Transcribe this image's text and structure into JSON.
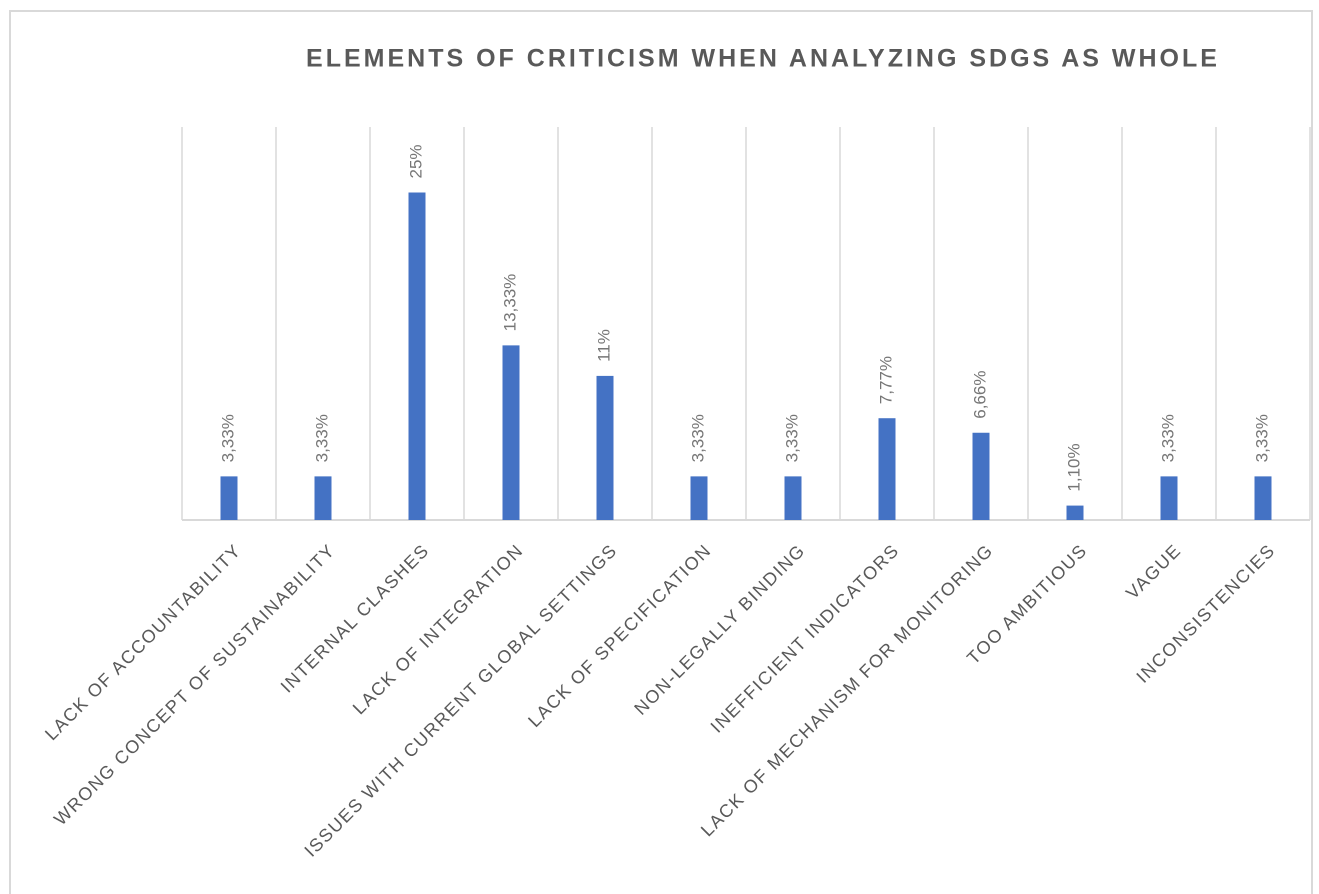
{
  "chart_data": {
    "type": "bar",
    "title": "ELEMENTS OF CRITICISM WHEN ANALYZING SDGS AS WHOLE",
    "categories": [
      "LACK OF ACCOUNTABILITY",
      "WRONG CONCEPT OF SUSTAINABILITY",
      "INTERNAL CLASHES",
      "LACK OF INTEGRATION",
      "ISSUES WITH CURRENT GLOBAL SETTINGS",
      "LACK OF SPECIFICATION",
      "NON-LEGALLY BINDING",
      "INEFFICIENT INDICATORS",
      "LACK OF MECHANISM FOR MONITORING",
      "TOO AMBITIOUS",
      "VAGUE",
      "INCONSISTENCIES"
    ],
    "values": [
      3.33,
      3.33,
      25,
      13.33,
      11,
      3.33,
      3.33,
      7.77,
      6.66,
      1.1,
      3.33,
      3.33
    ],
    "value_labels": [
      "3,33%",
      "3,33%",
      "25%",
      "13,33%",
      "11%",
      "3,33%",
      "3,33%",
      "7,77%",
      "6,66%",
      "1,10%",
      "3,33%",
      "3,33%"
    ],
    "color": "#4472c4",
    "grid": true
  }
}
